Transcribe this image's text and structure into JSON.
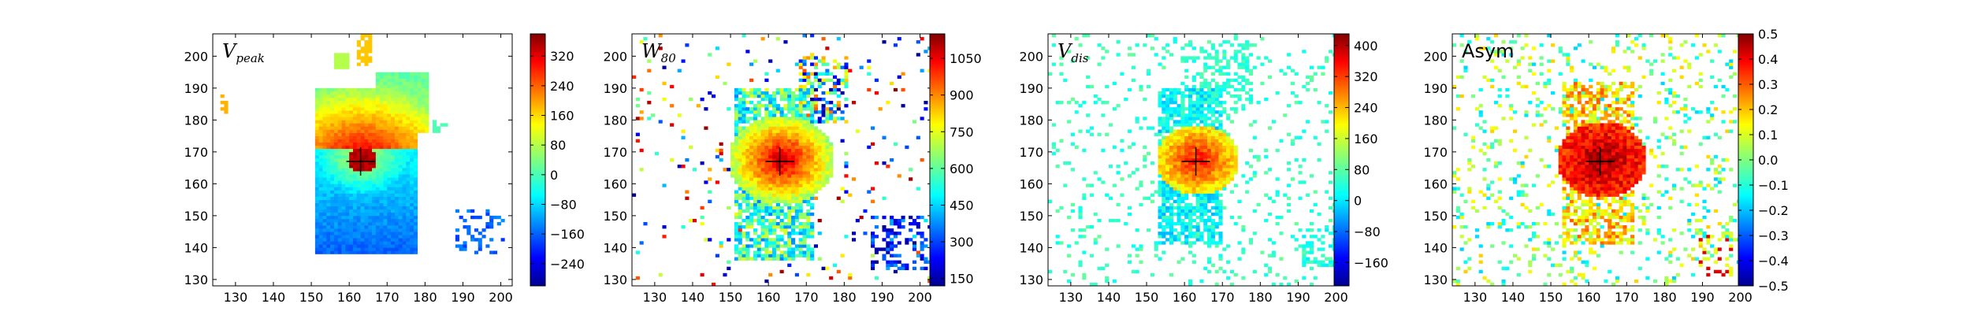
{
  "chart_data": [
    {
      "type": "heatmap",
      "panel_label": "V_peak",
      "label_main": "V",
      "label_sub": "peak",
      "xlim": [
        124,
        203
      ],
      "ylim": [
        128,
        207
      ],
      "xticks": [
        130,
        140,
        150,
        160,
        170,
        180,
        190,
        200
      ],
      "yticks": [
        130,
        140,
        150,
        160,
        170,
        180,
        190,
        200
      ],
      "colorbar": {
        "min": -300,
        "max": 380,
        "ticks": [
          -240,
          -160,
          -80,
          0,
          80,
          160,
          240,
          320
        ]
      },
      "center_marker": [
        163,
        167
      ],
      "colormap": "jet"
    },
    {
      "type": "heatmap",
      "panel_label": "W_80",
      "label_main": "W",
      "label_sub": "80",
      "xlim": [
        124,
        203
      ],
      "ylim": [
        128,
        207
      ],
      "xticks": [
        130,
        140,
        150,
        160,
        170,
        180,
        190,
        200
      ],
      "yticks": [
        130,
        140,
        150,
        160,
        170,
        180,
        190,
        200
      ],
      "colorbar": {
        "min": 120,
        "max": 1150,
        "ticks": [
          150,
          300,
          450,
          600,
          750,
          900,
          1050
        ]
      },
      "center_marker": [
        163,
        167
      ],
      "colormap": "jet"
    },
    {
      "type": "heatmap",
      "panel_label": "V_dis",
      "label_main": "V",
      "label_sub": "dis",
      "xlim": [
        124,
        203
      ],
      "ylim": [
        128,
        207
      ],
      "xticks": [
        130,
        140,
        150,
        160,
        170,
        180,
        190,
        200
      ],
      "yticks": [
        130,
        140,
        150,
        160,
        170,
        180,
        190,
        200
      ],
      "colorbar": {
        "min": -220,
        "max": 430,
        "ticks": [
          -160,
          -80,
          0,
          80,
          160,
          240,
          320,
          400
        ]
      },
      "center_marker": [
        163,
        167
      ],
      "colormap": "jet"
    },
    {
      "type": "heatmap",
      "panel_label": "Asym",
      "label_main": "Asym",
      "label_sub": "",
      "xlim": [
        124,
        203
      ],
      "ylim": [
        128,
        207
      ],
      "xticks": [
        130,
        140,
        150,
        160,
        170,
        180,
        190,
        200
      ],
      "yticks": [
        130,
        140,
        150,
        160,
        170,
        180,
        190,
        200
      ],
      "colorbar": {
        "min": -0.5,
        "max": 0.5,
        "ticks": [
          -0.5,
          -0.4,
          -0.3,
          -0.2,
          -0.1,
          0.0,
          0.1,
          0.2,
          0.3,
          0.4,
          0.5
        ]
      },
      "center_marker": [
        163,
        167
      ],
      "colormap": "jet"
    }
  ]
}
